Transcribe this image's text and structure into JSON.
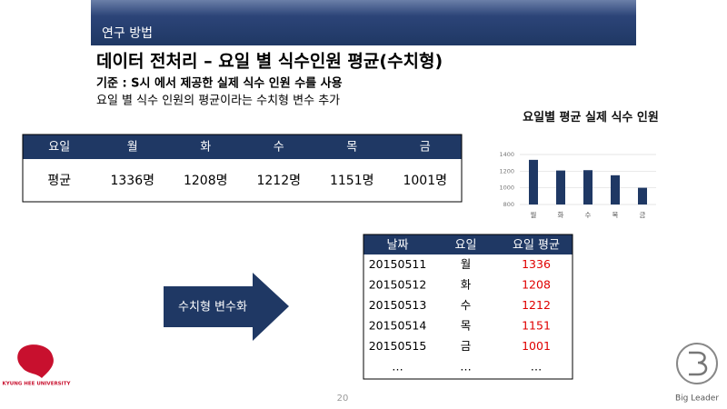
{
  "header": {
    "section": "연구 방법"
  },
  "title": "데이터 전처리 – 요일 별 식수인원 평균(수치형)",
  "bullets": [
    "기준 : S시 에서 제공한 실제 식수 인원 수를 사용",
    "요일 별 식수 인원의 평균이라는 수치형 변수 추가"
  ],
  "summary_table": {
    "header": [
      "요일",
      "월",
      "화",
      "수",
      "목",
      "금"
    ],
    "rows": [
      [
        "평균",
        "1336명",
        "1208명",
        "1212명",
        "1151명",
        "1001명"
      ]
    ]
  },
  "chart": {
    "type": "bar",
    "title": "요일별 평균 실제 식수 인원",
    "categories": [
      "월",
      "화",
      "수",
      "목",
      "금"
    ],
    "values": [
      1336,
      1208,
      1212,
      1151,
      1001
    ],
    "color": "#1f3864",
    "ylim": [
      800,
      1400
    ],
    "yticks": [
      800,
      1000,
      1200,
      1400
    ],
    "grid": true
  },
  "arrow_label": "수치형 변수화",
  "data_table": {
    "header": [
      "날짜",
      "요일",
      "요일 평균"
    ],
    "rows": [
      [
        "20150511",
        "월",
        "1336"
      ],
      [
        "20150512",
        "화",
        "1208"
      ],
      [
        "20150513",
        "수",
        "1212"
      ],
      [
        "20150514",
        "목",
        "1151"
      ],
      [
        "20150515",
        "금",
        "1001"
      ],
      [
        "…",
        "…",
        "…"
      ]
    ]
  },
  "page_number": "20",
  "logos": {
    "left": "KYUNG HEE UNIVERSITY",
    "right": "Big Leader"
  }
}
